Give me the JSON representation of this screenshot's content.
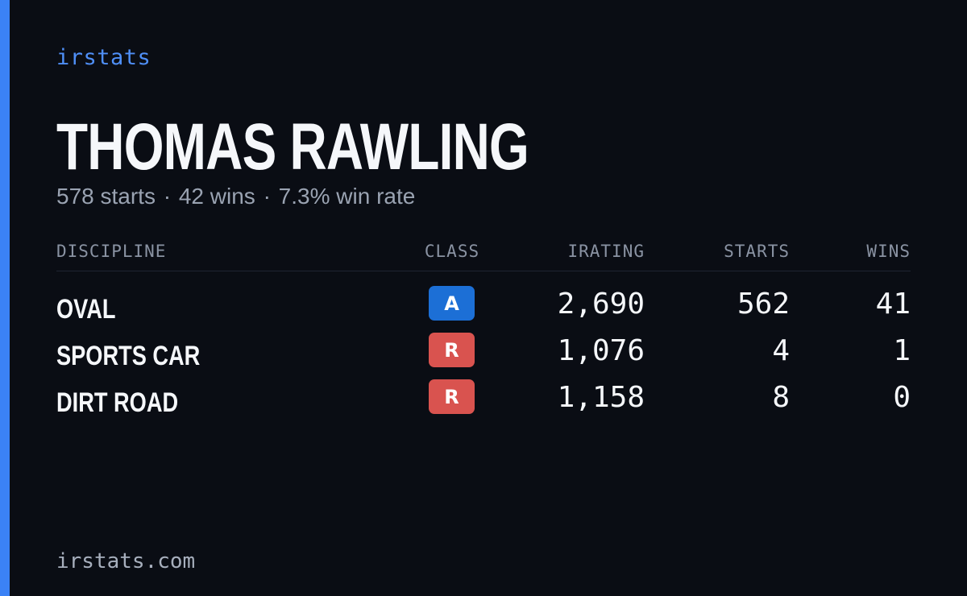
{
  "brand": "irstats",
  "driver": {
    "name": "THOMAS RAWLING",
    "summary": {
      "starts": "578 starts",
      "wins": "42 wins",
      "win_rate": "7.3% win rate",
      "separator": "·"
    }
  },
  "table": {
    "headers": {
      "discipline": "DISCIPLINE",
      "class": "CLASS",
      "irating": "IRATING",
      "starts": "STARTS",
      "wins": "WINS"
    },
    "rows": [
      {
        "discipline": "OVAL",
        "class": "A",
        "class_color": "#1c6fd6",
        "irating": "2,690",
        "starts": "562",
        "wins": "41"
      },
      {
        "discipline": "SPORTS CAR",
        "class": "R",
        "class_color": "#d9534f",
        "irating": "1,076",
        "starts": "4",
        "wins": "1"
      },
      {
        "discipline": "DIRT ROAD",
        "class": "R",
        "class_color": "#d9534f",
        "irating": "1,158",
        "starts": "8",
        "wins": "0"
      }
    ]
  },
  "footer": "irstats.com",
  "colors": {
    "accent": "#3b82f6",
    "background": "#0a0d14"
  }
}
